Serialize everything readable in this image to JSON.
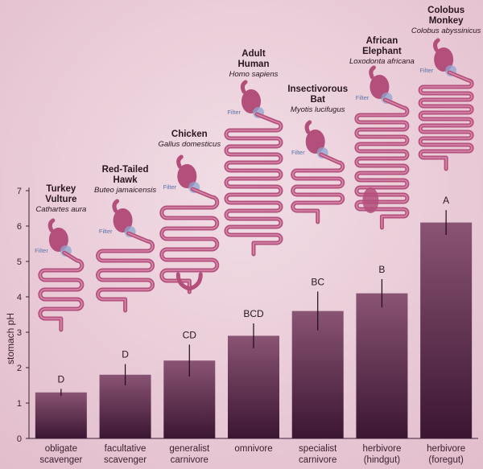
{
  "chart_data": {
    "type": "bar",
    "title": "",
    "xlabel": "",
    "ylabel": "stomach pH",
    "ylim": [
      0,
      7
    ],
    "yticks": [
      0,
      1,
      2,
      3,
      4,
      5,
      6,
      7
    ],
    "grid": false,
    "categories": [
      {
        "line1": "obligate",
        "line2": "scavenger"
      },
      {
        "line1": "facultative",
        "line2": "scavenger"
      },
      {
        "line1": "generalist",
        "line2": "carnivore"
      },
      {
        "line1": "omnivore",
        "line2": ""
      },
      {
        "line1": "specialist",
        "line2": "carnivore"
      },
      {
        "line1": "herbivore",
        "line2": "(hindgut)"
      },
      {
        "line1": "herbivore",
        "line2": "(foregut)"
      }
    ],
    "values": [
      1.3,
      1.8,
      2.2,
      2.9,
      3.6,
      4.1,
      6.1
    ],
    "error": [
      0.1,
      0.3,
      0.45,
      0.35,
      0.55,
      0.4,
      0.35
    ],
    "significance": [
      "D",
      "D",
      "CD",
      "BCD",
      "BC",
      "B",
      "A"
    ],
    "animals": [
      {
        "name": "Turkey Vulture",
        "latin": "Cathartes aura"
      },
      {
        "name": "Red-Tailed Hawk",
        "latin": "Buteo jamaicensis"
      },
      {
        "name": "Chicken",
        "latin": "Gallus domesticus"
      },
      {
        "name": "Adult Human",
        "latin": "Homo sapiens"
      },
      {
        "name": "Insectivorous Bat",
        "latin": "Myotis lucifugus"
      },
      {
        "name": "African Elephant",
        "latin": "Loxodonta africana"
      },
      {
        "name": "Colobus Monkey",
        "latin": "Colobus abyssinicus"
      }
    ],
    "filter_label": "Filter",
    "colors": {
      "bar_top": "#8a5473",
      "bar_bottom": "#3b1633",
      "gut": "#b34f7a",
      "filter": "#8fa4cf",
      "background": "#ecd3dc"
    }
  }
}
